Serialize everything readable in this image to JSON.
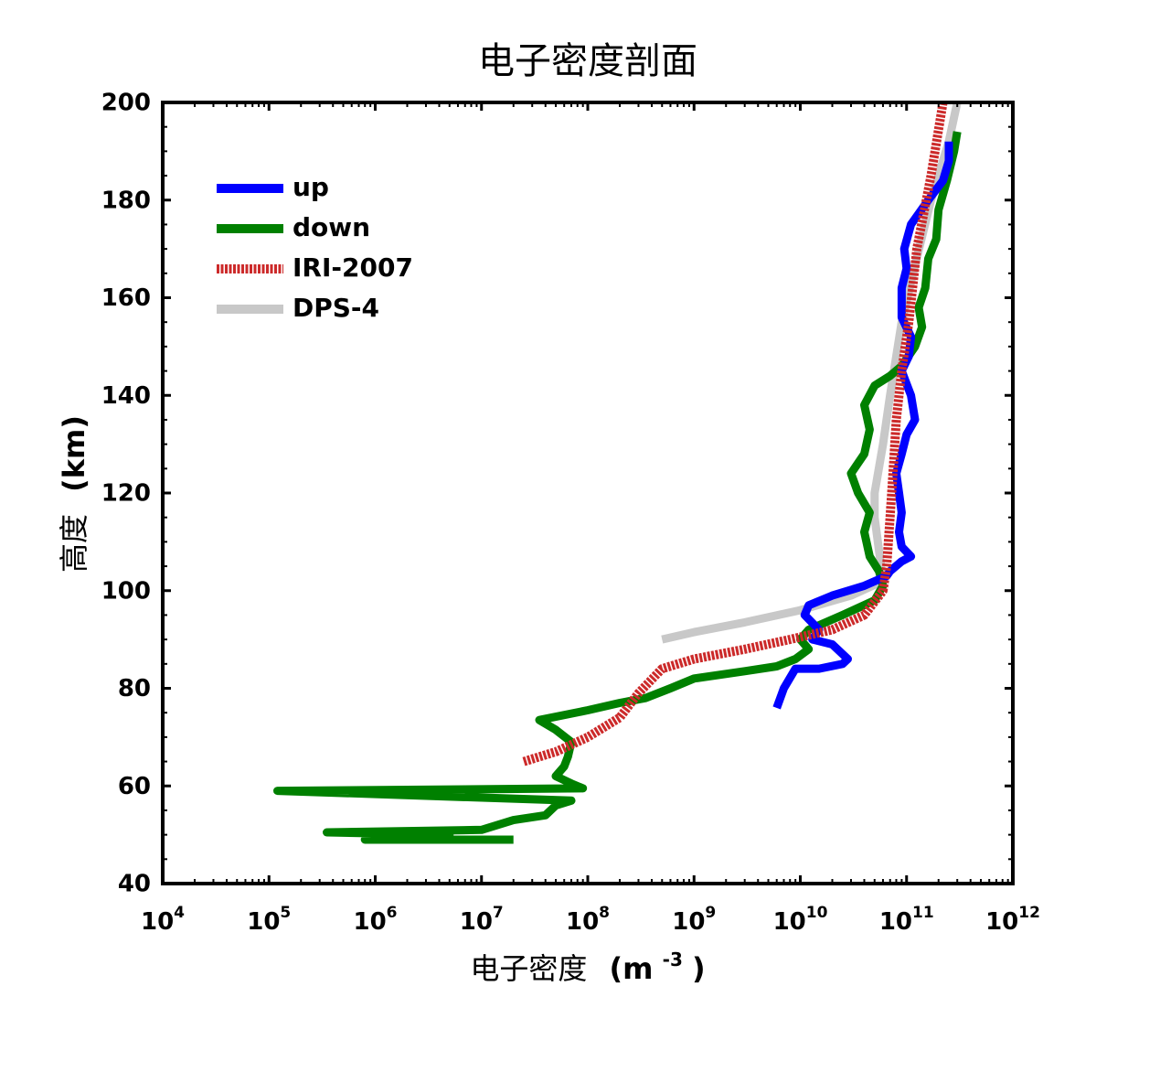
{
  "chart_data": {
    "type": "line",
    "title": "电子密度剖面",
    "xlabel": {
      "text": "电子密度",
      "unit": "(m-3)",
      "unit_open": "(m",
      "unit_sup": "-3",
      "unit_close": ")"
    },
    "ylabel": {
      "text": "高度",
      "unit": "(km)"
    },
    "x_scale": "log",
    "xlim": [
      10000,
      1000000000000
    ],
    "ylim": [
      40,
      200
    ],
    "x_ticks": [
      {
        "base": "10",
        "exp": "4",
        "value": 10000
      },
      {
        "base": "10",
        "exp": "5",
        "value": 100000
      },
      {
        "base": "10",
        "exp": "6",
        "value": 1000000
      },
      {
        "base": "10",
        "exp": "7",
        "value": 10000000
      },
      {
        "base": "10",
        "exp": "8",
        "value": 100000000
      },
      {
        "base": "10",
        "exp": "9",
        "value": 1000000000
      },
      {
        "base": "10",
        "exp": "10",
        "value": 10000000000
      },
      {
        "base": "10",
        "exp": "11",
        "value": 100000000000
      },
      {
        "base": "10",
        "exp": "12",
        "value": 1000000000000
      }
    ],
    "y_ticks": [
      "40",
      "60",
      "80",
      "100",
      "120",
      "140",
      "160",
      "180",
      "200"
    ],
    "grid": false,
    "legend_position": "top-left",
    "series": [
      {
        "name": "up",
        "color": "#0000ff",
        "points": [
          [
            6000000000.0,
            76
          ],
          [
            7000000000.0,
            80
          ],
          [
            9000000000.0,
            84
          ],
          [
            15000000000.0,
            84
          ],
          [
            25000000000.0,
            85
          ],
          [
            28000000000.0,
            86
          ],
          [
            20000000000.0,
            89
          ],
          [
            13000000000.0,
            90
          ],
          [
            15000000000.0,
            92
          ],
          [
            11000000000.0,
            95
          ],
          [
            12000000000.0,
            97
          ],
          [
            20000000000.0,
            99
          ],
          [
            40000000000.0,
            101
          ],
          [
            65000000000.0,
            103
          ],
          [
            70000000000.0,
            104
          ],
          [
            90000000000.0,
            106
          ],
          [
            110000000000.0,
            107
          ],
          [
            90000000000.0,
            109
          ],
          [
            85000000000.0,
            112
          ],
          [
            90000000000.0,
            116
          ],
          [
            85000000000.0,
            120
          ],
          [
            80000000000.0,
            124
          ],
          [
            90000000000.0,
            128
          ],
          [
            100000000000.0,
            132
          ],
          [
            120000000000.0,
            135
          ],
          [
            110000000000.0,
            140
          ],
          [
            90000000000.0,
            145
          ],
          [
            105000000000.0,
            148
          ],
          [
            110000000000.0,
            152
          ],
          [
            90000000000.0,
            156
          ],
          [
            90000000000.0,
            162
          ],
          [
            100000000000.0,
            166
          ],
          [
            95000000000.0,
            170
          ],
          [
            110000000000.0,
            175
          ],
          [
            160000000000.0,
            180
          ],
          [
            220000000000.0,
            184
          ],
          [
            250000000000.0,
            188
          ],
          [
            250000000000.0,
            192
          ]
        ]
      },
      {
        "name": "down",
        "color": "#008000",
        "points": [
          [
            20000000.0,
            49
          ],
          [
            800000.0,
            49
          ],
          [
            5000000.0,
            50
          ],
          [
            350000.0,
            50.5
          ],
          [
            10000000.0,
            51
          ],
          [
            20000000.0,
            53
          ],
          [
            40000000.0,
            54
          ],
          [
            50000000.0,
            56
          ],
          [
            70000000.0,
            57
          ],
          [
            120000.0,
            59
          ],
          [
            90000000.0,
            59.5
          ],
          [
            70000000.0,
            60.5
          ],
          [
            50000000.0,
            62
          ],
          [
            60000000.0,
            64
          ],
          [
            65000000.0,
            66
          ],
          [
            70000000.0,
            69
          ],
          [
            50000000.0,
            71.5
          ],
          [
            35000000.0,
            73.5
          ],
          [
            100000000.0,
            75.5
          ],
          [
            200000000.0,
            77
          ],
          [
            350000000.0,
            78
          ],
          [
            600000000.0,
            80
          ],
          [
            1000000000.0,
            82
          ],
          [
            3000000000.0,
            83.5
          ],
          [
            6000000000.0,
            84.5
          ],
          [
            9000000000.0,
            86
          ],
          [
            12000000000.0,
            88
          ],
          [
            10000000000.0,
            90
          ],
          [
            12000000000.0,
            92
          ],
          [
            25000000000.0,
            95
          ],
          [
            50000000000.0,
            98
          ],
          [
            60000000000.0,
            101
          ],
          [
            55000000000.0,
            104
          ],
          [
            45000000000.0,
            107
          ],
          [
            40000000000.0,
            112
          ],
          [
            45000000000.0,
            116
          ],
          [
            35000000000.0,
            120
          ],
          [
            30000000000.0,
            124
          ],
          [
            40000000000.0,
            128
          ],
          [
            45000000000.0,
            133
          ],
          [
            40000000000.0,
            138
          ],
          [
            50000000000.0,
            142
          ],
          [
            70000000000.0,
            144
          ],
          [
            90000000000.0,
            146
          ],
          [
            120000000000.0,
            150
          ],
          [
            140000000000.0,
            154
          ],
          [
            130000000000.0,
            158
          ],
          [
            150000000000.0,
            162
          ],
          [
            160000000000.0,
            168
          ],
          [
            190000000000.0,
            172
          ],
          [
            200000000000.0,
            178
          ],
          [
            240000000000.0,
            184
          ],
          [
            280000000000.0,
            190
          ],
          [
            300000000000.0,
            194
          ]
        ]
      },
      {
        "name": "IRI-2007",
        "color": "#cc2a2a",
        "points": [
          [
            25000000.0,
            65
          ],
          [
            50000000.0,
            67
          ],
          [
            100000000.0,
            70
          ],
          [
            200000000.0,
            74
          ],
          [
            300000000.0,
            79
          ],
          [
            500000000.0,
            84
          ],
          [
            1000000000.0,
            86
          ],
          [
            3000000000.0,
            88
          ],
          [
            8000000000.0,
            90
          ],
          [
            20000000000.0,
            92
          ],
          [
            40000000000.0,
            95
          ],
          [
            60000000000.0,
            100
          ],
          [
            65000000000.0,
            105
          ],
          [
            70000000000.0,
            115
          ],
          [
            75000000000.0,
            125
          ],
          [
            80000000000.0,
            135
          ],
          [
            90000000000.0,
            145
          ],
          [
            105000000000.0,
            155
          ],
          [
            125000000000.0,
            170
          ],
          [
            170000000000.0,
            185
          ],
          [
            220000000000.0,
            200
          ]
        ]
      },
      {
        "name": "DPS-4",
        "color": "#c8c8c8",
        "points": [
          [
            500000000.0,
            90
          ],
          [
            1000000000.0,
            91.5
          ],
          [
            3000000000.0,
            93.5
          ],
          [
            10000000000.0,
            96
          ],
          [
            30000000000.0,
            99
          ],
          [
            60000000000.0,
            102
          ],
          [
            50000000000.0,
            115
          ],
          [
            50000000000.0,
            120
          ],
          [
            60000000000.0,
            130
          ],
          [
            70000000000.0,
            140
          ],
          [
            90000000000.0,
            155
          ],
          [
            115000000000.0,
            165
          ],
          [
            170000000000.0,
            180
          ],
          [
            250000000000.0,
            192
          ],
          [
            300000000000.0,
            200
          ]
        ]
      }
    ]
  }
}
